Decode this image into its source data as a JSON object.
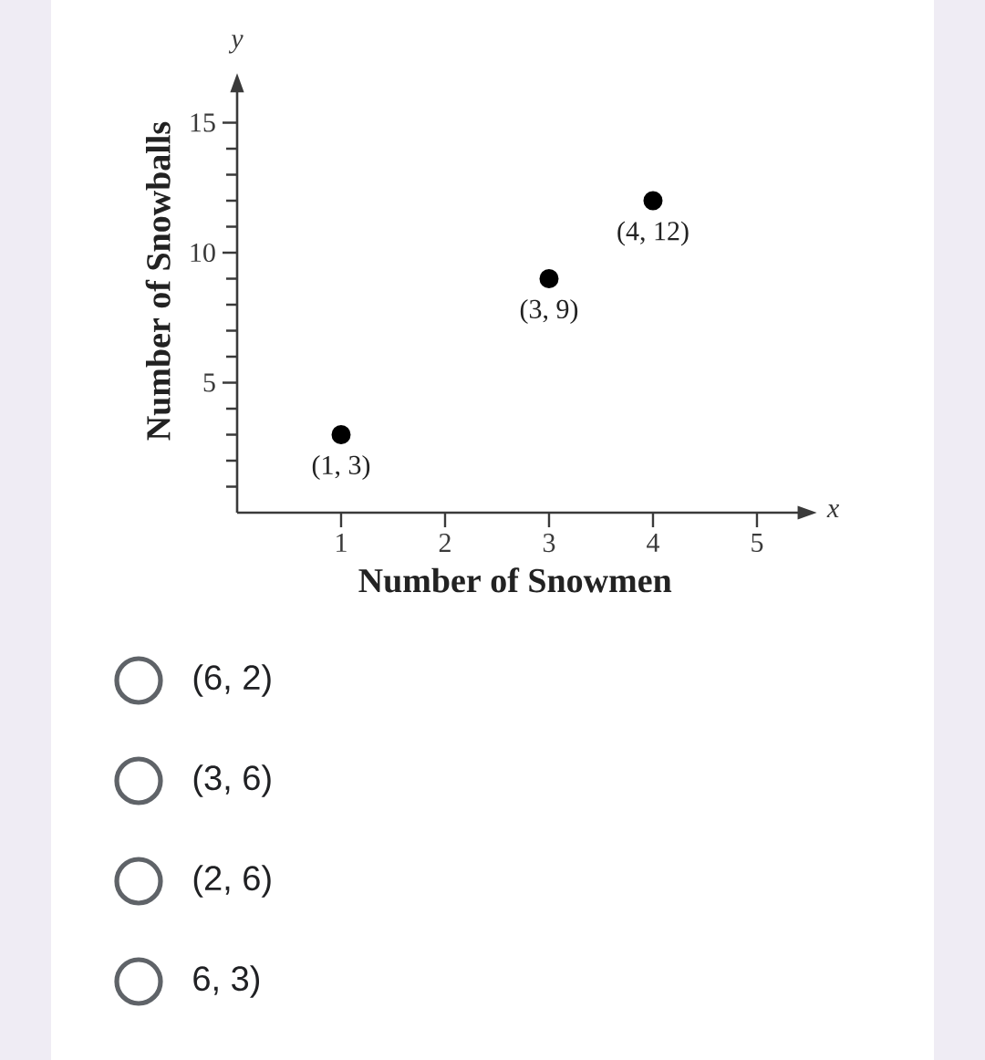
{
  "chart_data": {
    "type": "scatter",
    "xlabel": "Number of Snowmen",
    "ylabel": "Number of Snowballs",
    "x": [
      1,
      3,
      4
    ],
    "values": [
      3,
      9,
      12
    ],
    "color": "#000000",
    "marker": "circle",
    "xlim": [
      0,
      5.4
    ],
    "ylim": [
      0,
      16.2
    ],
    "xticks": [
      1,
      2,
      3,
      4,
      5
    ],
    "yticks": [
      {
        "value": 1,
        "label": null
      },
      {
        "value": 2,
        "label": null
      },
      {
        "value": 3,
        "label": null
      },
      {
        "value": 4,
        "label": null
      },
      5,
      {
        "value": 6,
        "label": null
      },
      {
        "value": 7,
        "label": null
      },
      {
        "value": 8,
        "label": null
      },
      {
        "value": 9,
        "label": null
      },
      10,
      {
        "value": 11,
        "label": null
      },
      {
        "value": 12,
        "label": null
      },
      {
        "value": 13,
        "label": null
      },
      {
        "value": 14,
        "label": null
      },
      15
    ],
    "annotations": [
      "y",
      "x",
      {
        "text": "(1, 3)",
        "x": 1,
        "y": 3
      },
      {
        "text": "(3, 9)",
        "x": 3,
        "y": 9
      },
      {
        "text": "(4, 12)",
        "x": 4,
        "y": 12
      },
      "(6, 2)",
      "(3, 6)",
      "(2, 6)",
      "6, 3)"
    ]
  }
}
